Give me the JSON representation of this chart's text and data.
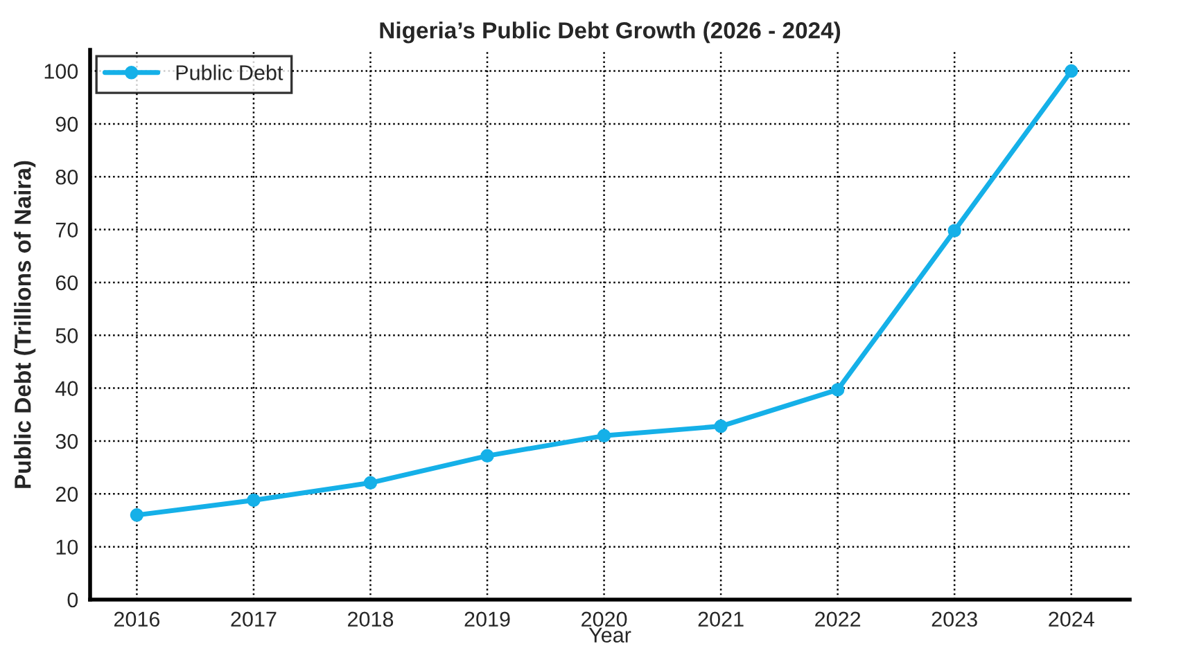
{
  "chart_data": {
    "type": "line",
    "title": "Nigeria’s Public Debt Growth (2026 - 2024)",
    "xlabel": "Year",
    "ylabel": "Public Debt (Trillions of Naira)",
    "x": [
      2016,
      2017,
      2018,
      2019,
      2020,
      2021,
      2022,
      2023,
      2024
    ],
    "series": [
      {
        "name": "Public Debt",
        "color": "#15b0e8",
        "values": [
          16,
          18.8,
          22.1,
          27.2,
          31.0,
          32.8,
          39.7,
          69.8,
          100
        ]
      }
    ],
    "xlim": [
      2015.6,
      2024.5
    ],
    "xticks": [
      2016,
      2017,
      2018,
      2019,
      2020,
      2021,
      2022,
      2023,
      2024
    ],
    "ylim": [
      0,
      104
    ],
    "yticks": [
      0,
      10,
      20,
      30,
      40,
      50,
      60,
      70,
      80,
      90,
      100
    ],
    "grid": true,
    "legend": "top left",
    "marker": "circle",
    "line_style": "solid"
  }
}
